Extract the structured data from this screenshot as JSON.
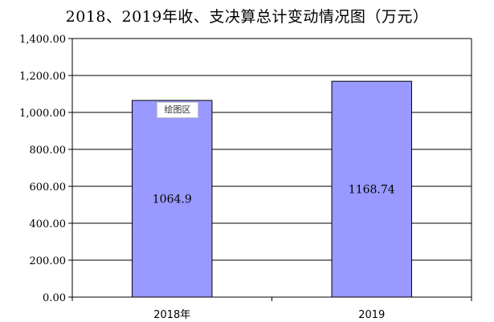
{
  "chart_data": {
    "type": "bar",
    "title": "2018、2019年收、支决算总计变动情况图（万元）",
    "categories": [
      "2018年",
      "2019"
    ],
    "values": [
      1064.9,
      1168.74
    ],
    "data_labels": [
      "1064.9",
      "1168.74"
    ],
    "yticks": [
      "0.00",
      "200.00",
      "400.00",
      "600.00",
      "800.00",
      "1,000.00",
      "1,200.00",
      "1,400.00"
    ],
    "ylim": [
      0,
      1400
    ],
    "grid": true,
    "legend": "none",
    "bar_color": "#9999ff",
    "xlabel": "",
    "ylabel": ""
  },
  "tooltip": {
    "text": "绘图区"
  }
}
